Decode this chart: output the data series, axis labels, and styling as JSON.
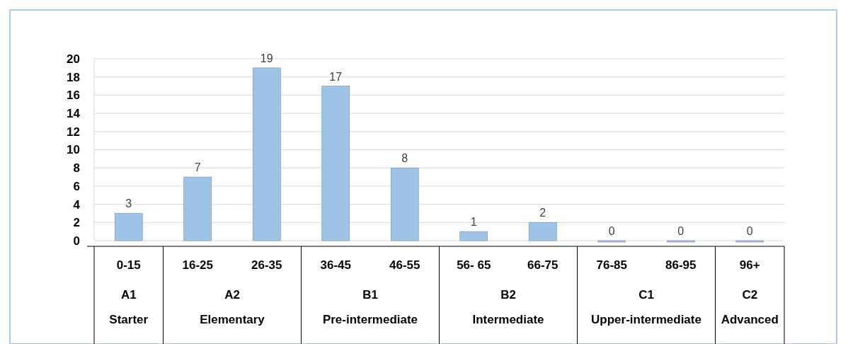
{
  "chart_data": {
    "type": "bar",
    "categories": [
      "0-15",
      "16-25",
      "26-35",
      "36-45",
      "46-55",
      "56- 65",
      "66-75",
      "76-85",
      "86-95",
      "96+"
    ],
    "values": [
      3,
      7,
      19,
      17,
      8,
      1,
      2,
      0,
      0,
      0
    ],
    "color": "#9dc3e6",
    "ylim": [
      0,
      20
    ],
    "yticks": [
      0,
      2,
      4,
      6,
      8,
      10,
      12,
      14,
      16,
      18,
      20
    ],
    "grid": "y",
    "data_labels": true,
    "annotations": [
      "A1",
      "A2",
      "B1",
      "B2",
      "C1",
      "C2",
      "Starter",
      "Elementary",
      "Pre-intermediate",
      "Intermediate",
      "Upper-intermediate",
      "Advanced"
    ]
  }
}
